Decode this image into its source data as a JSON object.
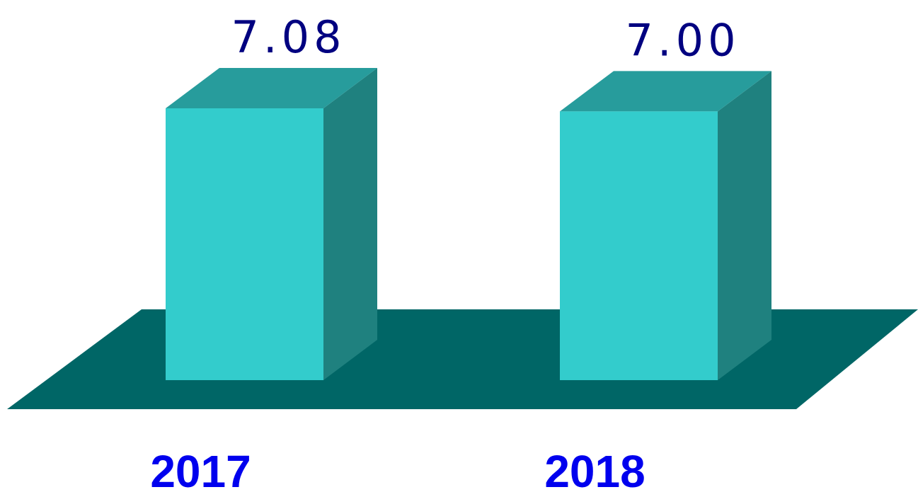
{
  "chart_data": {
    "type": "bar3d",
    "categories": [
      "2017",
      "2018"
    ],
    "values": [
      7.08,
      7.0
    ],
    "value_labels": [
      "7.08",
      "7.00"
    ],
    "color": "#33cccc"
  }
}
